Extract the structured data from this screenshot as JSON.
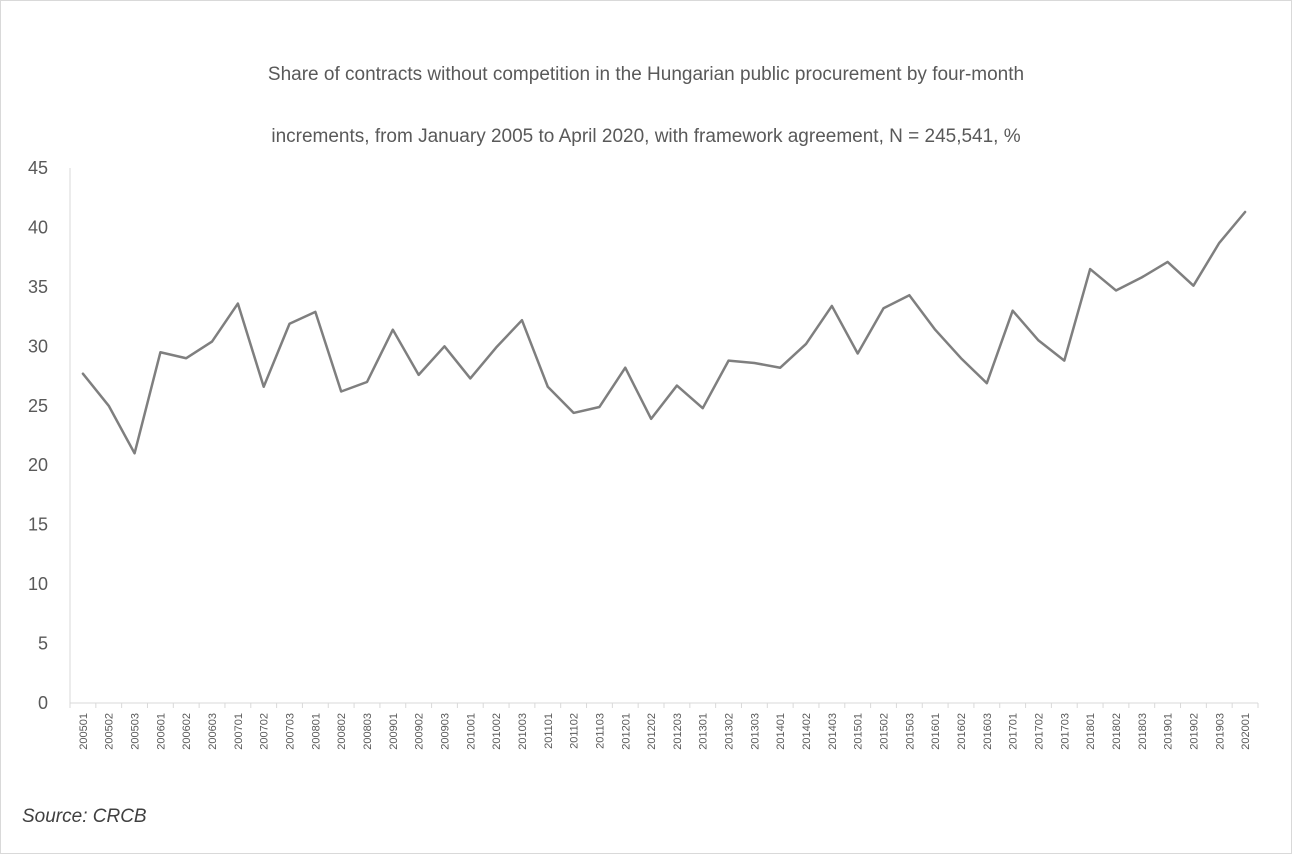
{
  "chart_data": {
    "type": "line",
    "title": "Share of contracts without competition in the Hungarian public procurement  by four-month increments, from January 2005 to April 2020, with framework agreement, N = 245,541, %",
    "title_lines": [
      "Share of contracts without competition in the Hungarian public procurement  by four-month",
      "increments, from January 2005 to April 2020, with framework agreement, N = 245,541, %"
    ],
    "source": "Source: CRCB",
    "xlabel": "",
    "ylabel": "",
    "ylim": [
      0,
      45
    ],
    "yticks": [
      0,
      5,
      10,
      15,
      20,
      25,
      30,
      35,
      40,
      45
    ],
    "grid": false,
    "legend": "none",
    "line_color": "#7f7f7f",
    "categories": [
      "200501",
      "200502",
      "200503",
      "200601",
      "200602",
      "200603",
      "200701",
      "200702",
      "200703",
      "200801",
      "200802",
      "200803",
      "200901",
      "200902",
      "200903",
      "201001",
      "201002",
      "201003",
      "201101",
      "201102",
      "201103",
      "201201",
      "201202",
      "201203",
      "201301",
      "201302",
      "201303",
      "201401",
      "201402",
      "201403",
      "201501",
      "201502",
      "201503",
      "201601",
      "201602",
      "201603",
      "201701",
      "201702",
      "201703",
      "201801",
      "201802",
      "201803",
      "201901",
      "201902",
      "201903",
      "202001"
    ],
    "series": [
      {
        "values": [
          27.7,
          25.0,
          21.0,
          29.5,
          29.0,
          30.4,
          33.6,
          26.6,
          31.9,
          32.9,
          26.2,
          27.0,
          31.4,
          27.6,
          30.0,
          27.3,
          29.9,
          32.2,
          26.6,
          24.4,
          24.9,
          28.2,
          23.9,
          26.7,
          24.8,
          28.8,
          28.6,
          28.2,
          30.2,
          33.4,
          29.4,
          33.2,
          34.3,
          31.4,
          29.0,
          26.9,
          33.0,
          30.5,
          28.8,
          36.5,
          34.7,
          35.8,
          37.1,
          35.1,
          38.7,
          41.3
        ]
      }
    ]
  }
}
